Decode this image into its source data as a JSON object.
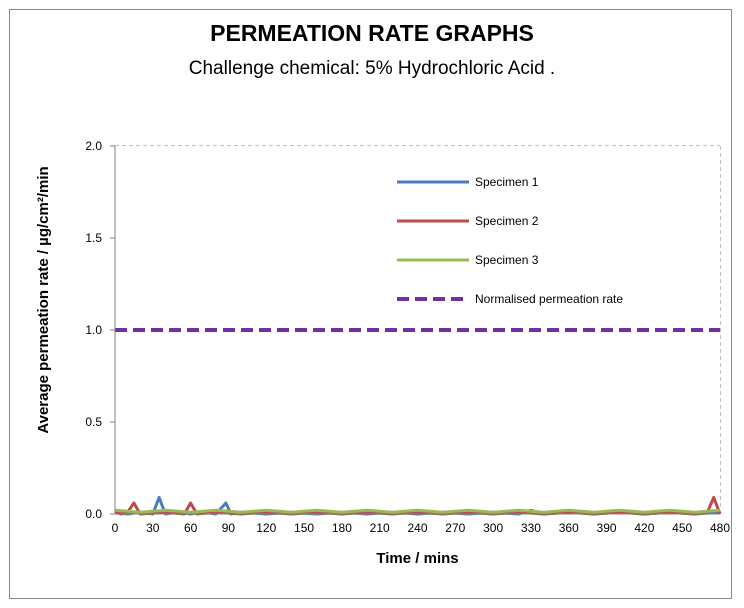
{
  "chart_data": {
    "type": "line",
    "title": "PERMEATION RATE GRAPHS",
    "subtitle": "Challenge chemical: 5% Hydrochloric Acid .",
    "xlabel": "Time / mins",
    "ylabel": "Average permeation rate / µg/cm²/min",
    "xlim": [
      0,
      480
    ],
    "ylim": [
      0,
      2
    ],
    "x_ticks": [
      0,
      30,
      60,
      90,
      120,
      150,
      180,
      210,
      240,
      270,
      300,
      330,
      360,
      390,
      420,
      450,
      480
    ],
    "x_tick_labels": [
      "0",
      "30",
      "60",
      "90",
      "120",
      "150",
      "180",
      "210",
      "240",
      "270",
      "300",
      "330",
      "360",
      "390",
      "420",
      "450",
      "480"
    ],
    "y_ticks": [
      0,
      0.5,
      1,
      1.5,
      2
    ],
    "y_tick_labels": [
      "0.0",
      "0.5",
      "1.0",
      "1.5",
      "2.0"
    ],
    "grid": true,
    "legend_position": "top-right",
    "series": [
      {
        "name": "Specimen 1",
        "color": "#4a7ebb",
        "dash": "solid",
        "x": [
          0,
          10,
          20,
          30,
          35,
          40,
          50,
          60,
          70,
          80,
          88,
          92,
          100,
          120,
          140,
          160,
          180,
          200,
          220,
          240,
          260,
          280,
          300,
          320,
          330,
          340,
          360,
          380,
          400,
          420,
          440,
          460,
          480
        ],
        "y": [
          0.01,
          0.0,
          0.01,
          0.0,
          0.09,
          0.0,
          0.01,
          0.0,
          0.01,
          0.0,
          0.06,
          0.0,
          0.01,
          0.0,
          0.01,
          0.0,
          0.01,
          0.0,
          0.01,
          0.0,
          0.01,
          0.0,
          0.01,
          0.0,
          0.02,
          0.0,
          0.01,
          0.0,
          0.01,
          0.0,
          0.01,
          0.0,
          0.01
        ]
      },
      {
        "name": "Specimen 2",
        "color": "#be4b48",
        "dash": "solid",
        "x": [
          0,
          5,
          10,
          15,
          20,
          40,
          55,
          60,
          65,
          80,
          100,
          120,
          140,
          160,
          180,
          200,
          220,
          240,
          260,
          280,
          300,
          320,
          340,
          360,
          380,
          400,
          420,
          440,
          460,
          470,
          475,
          480
        ],
        "y": [
          0.01,
          0.0,
          0.01,
          0.06,
          0.0,
          0.01,
          0.0,
          0.06,
          0.0,
          0.01,
          0.0,
          0.01,
          0.0,
          0.01,
          0.0,
          0.01,
          0.0,
          0.01,
          0.0,
          0.01,
          0.0,
          0.01,
          0.0,
          0.01,
          0.0,
          0.01,
          0.0,
          0.01,
          0.0,
          0.01,
          0.09,
          0.0
        ]
      },
      {
        "name": "Specimen 3",
        "color": "#98b954",
        "dash": "solid",
        "x": [
          0,
          20,
          40,
          60,
          80,
          100,
          120,
          140,
          160,
          180,
          200,
          220,
          240,
          260,
          280,
          300,
          320,
          340,
          360,
          380,
          400,
          420,
          440,
          460,
          480
        ],
        "y": [
          0.02,
          0.01,
          0.02,
          0.01,
          0.02,
          0.01,
          0.02,
          0.01,
          0.02,
          0.01,
          0.02,
          0.01,
          0.02,
          0.01,
          0.02,
          0.01,
          0.02,
          0.01,
          0.02,
          0.01,
          0.02,
          0.01,
          0.02,
          0.01,
          0.02
        ]
      },
      {
        "name": "Normalised permeation rate",
        "color": "#7030a0",
        "dash": "dashed",
        "x": [
          0,
          480
        ],
        "y": [
          1.0,
          1.0
        ]
      }
    ]
  }
}
